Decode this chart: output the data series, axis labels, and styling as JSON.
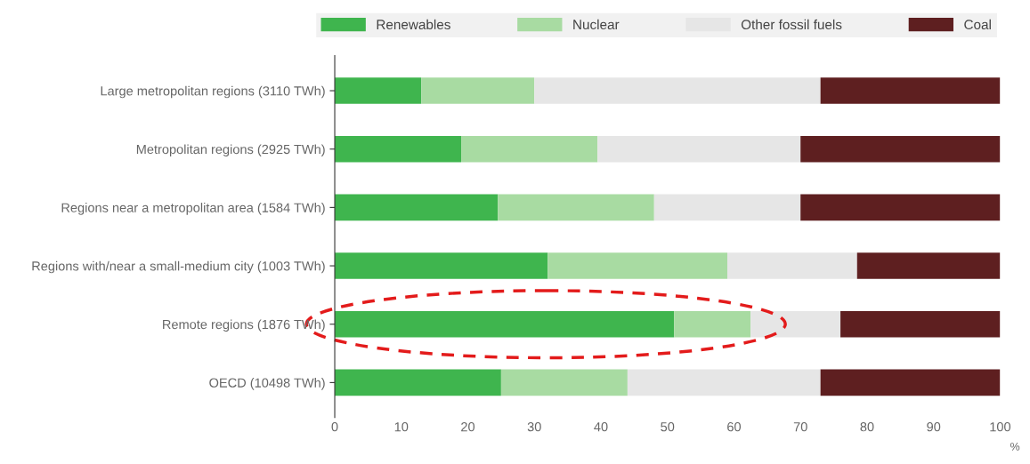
{
  "chart_data": {
    "type": "bar",
    "orientation": "horizontal",
    "stacked": true,
    "categories": [
      "Large metropolitan regions (3110 TWh)",
      "Metropolitan regions (2925 TWh)",
      "Regions near a metropolitan area (1584 TWh)",
      "Regions with/near a small-medium city (1003 TWh)",
      "Remote regions (1876 TWh)",
      "OECD (10498 TWh)"
    ],
    "series": [
      {
        "name": "Renewables",
        "color": "#3fb54e",
        "values": [
          13,
          19,
          24.5,
          32,
          51,
          25
        ]
      },
      {
        "name": "Nuclear",
        "color": "#a8dba2",
        "values": [
          17,
          20.5,
          23.5,
          27,
          11.5,
          19
        ]
      },
      {
        "name": "Other fossil fuels",
        "color": "#e6e6e6",
        "values": [
          43,
          30.5,
          22,
          19.5,
          13.5,
          29
        ]
      },
      {
        "name": "Coal",
        "color": "#5e1f20",
        "values": [
          27,
          30,
          30,
          21.5,
          24,
          27
        ]
      }
    ],
    "xlim": [
      0,
      100
    ],
    "xticks": [
      0,
      10,
      20,
      30,
      40,
      50,
      60,
      70,
      80,
      90,
      100
    ],
    "xlabel": "%",
    "grid": false,
    "legend": "top"
  }
}
